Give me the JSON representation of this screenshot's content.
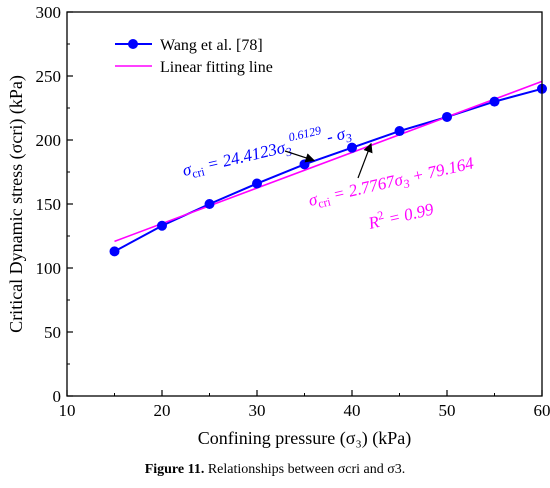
{
  "chart_data": {
    "type": "line",
    "xlabel": "Confining pressure (σ₃) (kPa)",
    "ylabel": "Critical Dynamic stress (σcri) (kPa)",
    "xlim": [
      10,
      60
    ],
    "ylim": [
      0,
      300
    ],
    "xticks": [
      10,
      20,
      30,
      40,
      50,
      60
    ],
    "yticks": [
      0,
      50,
      100,
      150,
      200,
      250,
      300
    ],
    "grid": false,
    "legend_position": "top-left",
    "series": [
      {
        "name": "Wang et al. [78]",
        "kind": "line-marker",
        "color": "#0000ff",
        "x": [
          15,
          20,
          25,
          30,
          35,
          40,
          45,
          50,
          55,
          60
        ],
        "y": [
          113,
          133,
          150,
          166,
          181,
          194,
          207,
          218,
          230,
          240
        ]
      },
      {
        "name": "Linear fitting line",
        "kind": "line",
        "color": "#ff00ff",
        "x": [
          15,
          60
        ],
        "y": [
          120.8,
          245.8
        ]
      }
    ],
    "annotations": {
      "power_fit": {
        "text": "σcri = 24.4123σ3^0.6129 - σ3",
        "color": "#0000ff",
        "arrow_to": [
          36,
          184
        ]
      },
      "linear_fit": {
        "text": "σcri = 2.7767σ3 + 79.164",
        "r2_text": "R² = 0.99",
        "color": "#ff00ff",
        "arrow_to": [
          42,
          197
        ]
      }
    }
  },
  "caption": {
    "label": "Figure 11.",
    "text": "Relationships between σcri and σ3."
  }
}
